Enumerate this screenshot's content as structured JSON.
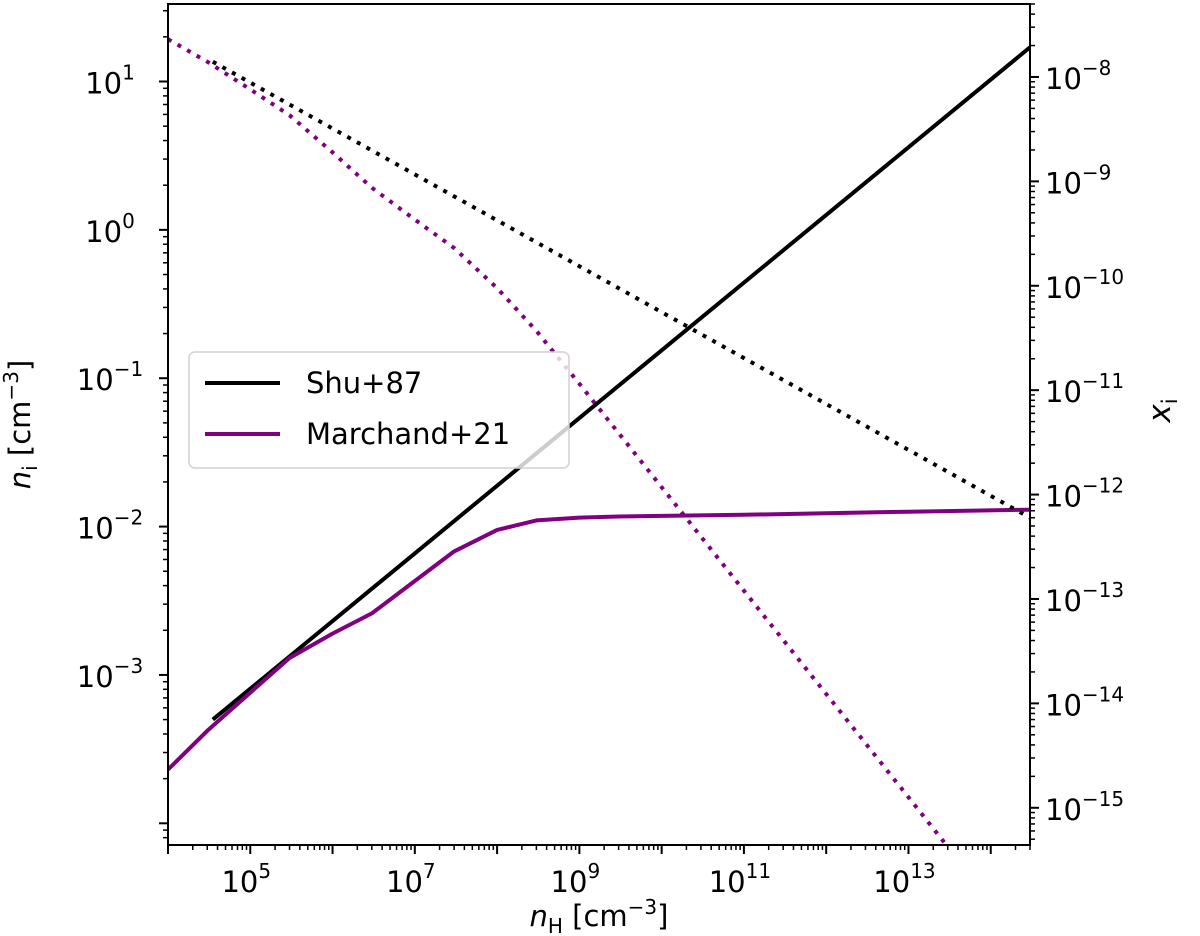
{
  "chart_data": {
    "type": "line",
    "x_scale": "log",
    "y_scale": "log",
    "y2_scale": "log",
    "xlim": [
      10000,
      300000000000000
    ],
    "ylim": [
      7.14e-05,
      33.3
    ],
    "y2lim": [
      4.4e-16,
      5e-08
    ],
    "xlabel": {
      "main": "n",
      "sub": "H",
      "unit_pre": " [cm",
      "unit_exp": "−3",
      "unit_post": "]"
    },
    "ylabel": {
      "main": "n",
      "sub": "i",
      "unit_pre": " [cm",
      "unit_exp": "−3",
      "unit_post": "]"
    },
    "y2label": {
      "main": "x",
      "sub": "i"
    },
    "x_ticks": [
      {
        "value": 100000,
        "base": "10",
        "exp": "5"
      },
      {
        "value": 10000000,
        "base": "10",
        "exp": "7"
      },
      {
        "value": 1000000000,
        "base": "10",
        "exp": "9"
      },
      {
        "value": 100000000000,
        "base": "10",
        "exp": "11"
      },
      {
        "value": 10000000000000,
        "base": "10",
        "exp": "13"
      }
    ],
    "y_ticks": [
      {
        "value": 10,
        "base": "10",
        "exp": "1"
      },
      {
        "value": 1,
        "base": "10",
        "exp": "0"
      },
      {
        "value": 0.1,
        "base": "10",
        "exp": "−1"
      },
      {
        "value": 0.01,
        "base": "10",
        "exp": "−2"
      },
      {
        "value": 0.001,
        "base": "10",
        "exp": "−3"
      }
    ],
    "y2_ticks": [
      {
        "value": 1e-08,
        "base": "10",
        "exp": "−8"
      },
      {
        "value": 1e-09,
        "base": "10",
        "exp": "−9"
      },
      {
        "value": 1e-10,
        "base": "10",
        "exp": "−10"
      },
      {
        "value": 1e-11,
        "base": "10",
        "exp": "−11"
      },
      {
        "value": 1e-12,
        "base": "10",
        "exp": "−12"
      },
      {
        "value": 1e-13,
        "base": "10",
        "exp": "−13"
      },
      {
        "value": 1e-14,
        "base": "10",
        "exp": "−14"
      },
      {
        "value": 1e-15,
        "base": "10",
        "exp": "−15"
      }
    ],
    "legend": {
      "position": "center-left",
      "entries": [
        {
          "label": "Shu+87",
          "color": "#000000"
        },
        {
          "label": "Marchand+21",
          "color": "#800080"
        }
      ]
    },
    "series": [
      {
        "name": "Shu+87",
        "quantity": "n_i",
        "axis": "left",
        "style": "solid",
        "color": "#000000",
        "x": [
          35000,
          300000000000000
        ],
        "y": [
          0.0005,
          17
        ]
      },
      {
        "name": "Marchand+21",
        "quantity": "n_i",
        "axis": "left",
        "style": "solid",
        "color": "#800080",
        "x": [
          10000,
          30000,
          100000,
          300000,
          1000000,
          3000000,
          10000000,
          30000000,
          100000000,
          300000000,
          1000000000,
          3000000000,
          10000000000,
          100000000000,
          1000000000000,
          10000000000000,
          300000000000000
        ],
        "y": [
          0.00023,
          0.00042,
          0.00076,
          0.0013,
          0.0019,
          0.0026,
          0.0043,
          0.0068,
          0.0095,
          0.011,
          0.0115,
          0.0117,
          0.0118,
          0.012,
          0.0123,
          0.0126,
          0.013
        ]
      },
      {
        "name": "Shu+87",
        "quantity": "x_i",
        "axis": "right",
        "style": "dotted",
        "color": "#000000",
        "x": [
          35000,
          300000000000000
        ],
        "y": [
          1.4e-08,
          6e-13
        ]
      },
      {
        "name": "Marchand+21",
        "quantity": "x_i",
        "axis": "right",
        "style": "dotted",
        "color": "#800080",
        "x": [
          10000,
          30000,
          100000,
          300000,
          1000000,
          3000000,
          10000000,
          30000000,
          100000000,
          300000000,
          1000000000,
          10000000000,
          100000000000,
          1000000000000,
          10000000000000,
          300000000000000
        ],
        "y": [
          2.3e-08,
          1.4e-08,
          7.6e-09,
          4.3e-09,
          1.9e-09,
          8.7e-10,
          4.3e-10,
          2.3e-10,
          9.5e-11,
          3.7e-11,
          1.15e-11,
          1.18e-12,
          1.2e-13,
          1.23e-14,
          1.26e-15,
          4.3e-17
        ]
      }
    ]
  }
}
